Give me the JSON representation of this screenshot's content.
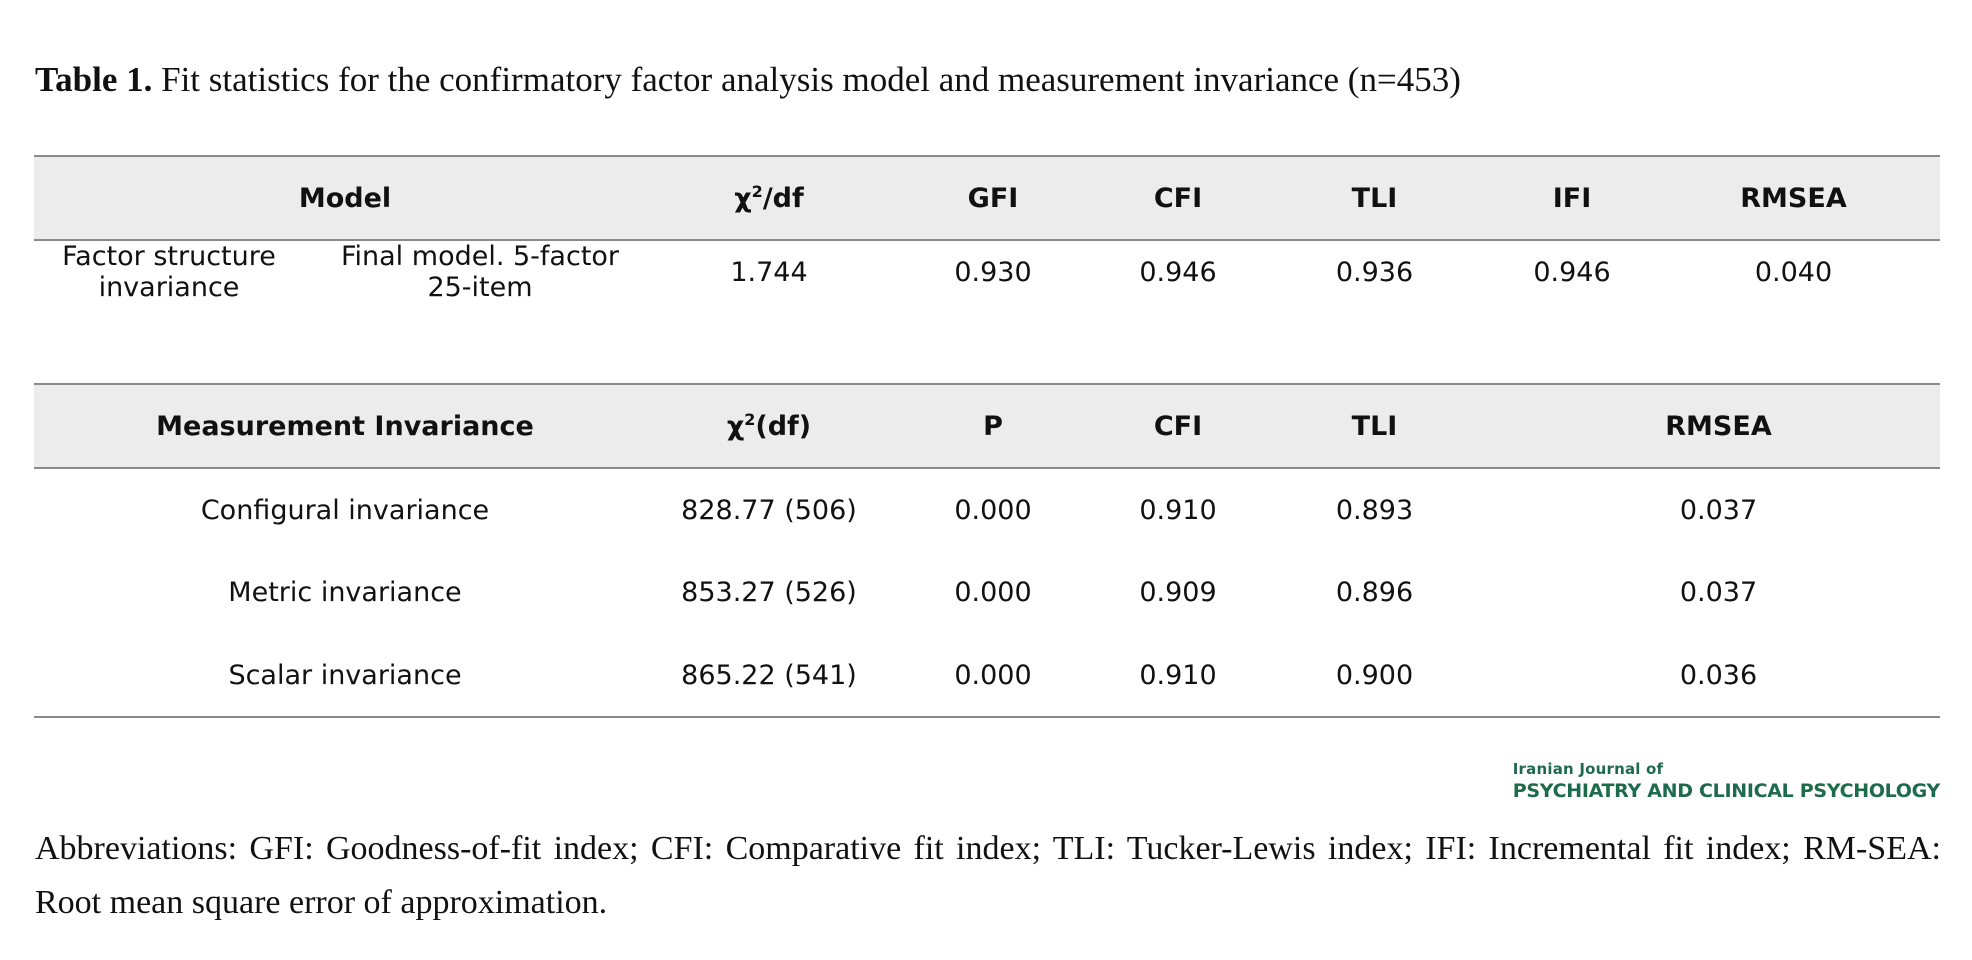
{
  "caption": {
    "label": "Table 1.",
    "text": "Fit statistics for the confirmatory factor analysis model and measurement invariance (n=453)"
  },
  "table_fit": {
    "headers": {
      "model": "Model",
      "chi_base": "χ",
      "chi_sup": "2",
      "chi_rest": "/df",
      "gfi": "GFI",
      "cfi": "CFI",
      "tli": "TLI",
      "ifi": "IFI",
      "rmsea": "RMSEA"
    },
    "row": {
      "category_line1": "Factor structure",
      "category_line2": "invariance",
      "model_line1": "Final model. 5-factor",
      "model_line2": "25-item",
      "chi_df": "1.744",
      "gfi": "0.930",
      "cfi": "0.946",
      "tli": "0.936",
      "ifi": "0.946",
      "rmsea": "0.040"
    }
  },
  "table_invariance": {
    "headers": {
      "measurement": "Measurement Invariance",
      "chi_base": "χ",
      "chi_sup": "2",
      "chi_rest": "(df)",
      "p": "P",
      "cfi": "CFI",
      "tli": "TLI",
      "rmsea": "RMSEA"
    },
    "rows": [
      {
        "name": "Configural invariance",
        "chi_df": "828.77 (506)",
        "p": "0.000",
        "cfi": "0.910",
        "tli": "0.893",
        "rmsea": "0.037"
      },
      {
        "name": "Metric invariance",
        "chi_df": "853.27 (526)",
        "p": "0.000",
        "cfi": "0.909",
        "tli": "0.896",
        "rmsea": "0.037"
      },
      {
        "name": "Scalar invariance",
        "chi_df": "865.22 (541)",
        "p": "0.000",
        "cfi": "0.910",
        "tli": "0.900",
        "rmsea": "0.036"
      }
    ]
  },
  "journal_logo": {
    "line1": "Iranian Journal of",
    "line2": "PSYCHIATRY AND CLINICAL PSYCHOLOGY"
  },
  "footnote": "Abbreviations: GFI: Goodness-of-fit index; CFI: Comparative fit index; TLI: Tucker-Lewis index; IFI: Incremental fit index; RM-SEA: Root mean square error of approximation.",
  "colors": {
    "header_bg": "#ececec",
    "rule": "#8a8a8a",
    "logo_green": "#1d6b4a"
  }
}
